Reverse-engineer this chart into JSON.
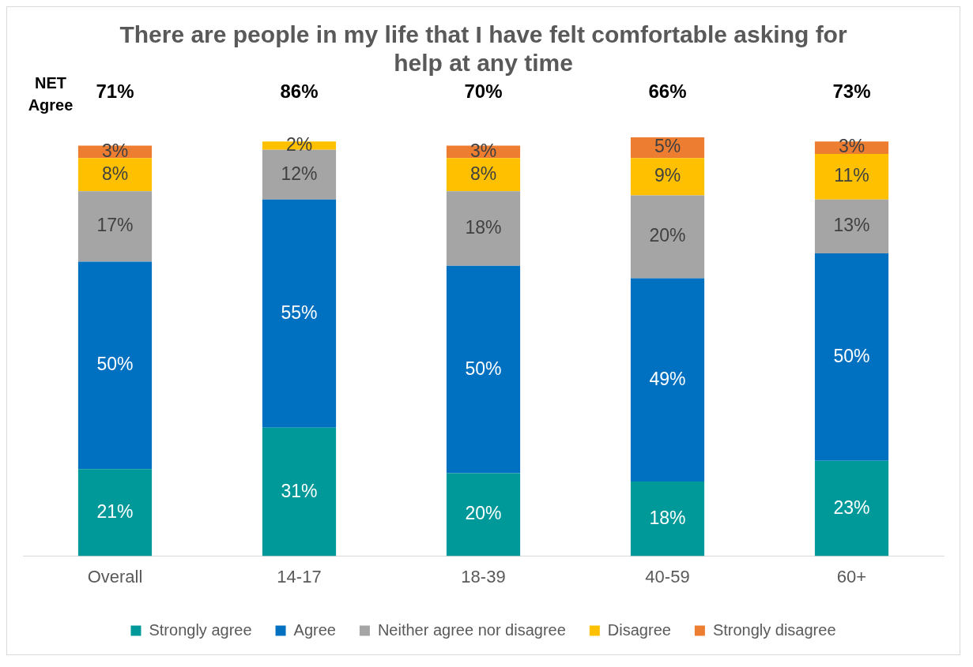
{
  "chart_data": {
    "type": "bar",
    "title": "There are people in my life that I have felt comfortable asking for help at any time",
    "categories": [
      "Overall",
      "14-17",
      "18-39",
      "40-59",
      "60+"
    ],
    "stacked": true,
    "legend": "bottom",
    "grid": false,
    "series": [
      {
        "name": "Strongly agree",
        "color": "#009999",
        "values": [
          21,
          31,
          20,
          18,
          23
        ],
        "value_labels": [
          "21%",
          "31%",
          "20%",
          "18%",
          "23%"
        ]
      },
      {
        "name": "Agree",
        "color": "#0070c0",
        "values": [
          50,
          55,
          50,
          49,
          50
        ],
        "value_labels": [
          "50%",
          "55%",
          "50%",
          "49%",
          "50%"
        ]
      },
      {
        "name": "Neither agree nor disagree",
        "color": "#a5a5a5",
        "values": [
          17,
          12,
          18,
          20,
          13
        ],
        "value_labels": [
          "17%",
          "12%",
          "18%",
          "20%",
          "13%"
        ]
      },
      {
        "name": "Disagree",
        "color": "#ffc000",
        "values": [
          8,
          2,
          8,
          9,
          11
        ],
        "value_labels": [
          "8%",
          "2%",
          "8%",
          "9%",
          "11%"
        ]
      },
      {
        "name": "Strongly disagree",
        "color": "#ed7d31",
        "values": [
          3,
          null,
          3,
          5,
          3
        ],
        "value_labels": [
          "3%",
          null,
          "3%",
          "5%",
          "3%"
        ]
      }
    ],
    "annotations": [
      "NET Agree",
      "71%",
      "86%",
      "70%",
      "66%",
      "73%"
    ]
  }
}
